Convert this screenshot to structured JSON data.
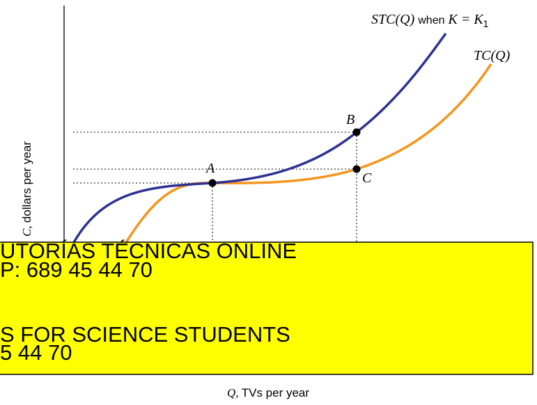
{
  "diagram": {
    "curve_labels": {
      "stc": {
        "name": "STC(Q)",
        "when": "when",
        "k": "K = K",
        "sub": "1"
      },
      "tc": "TC(Q)"
    },
    "points": {
      "a": "A",
      "b": "B",
      "c": "C"
    },
    "axes": {
      "y_symbol": "C,",
      "y_label": "dollars per year",
      "x_symbol": "Q,",
      "x_label": "TVs per year"
    }
  },
  "banner": {
    "lines": [
      "UTORÍAS TÉCNICAS ONLINE",
      "P: 689 45 44 70",
      "S FOR SCIENCE STUDENTS",
      "5 44 70"
    ]
  }
}
